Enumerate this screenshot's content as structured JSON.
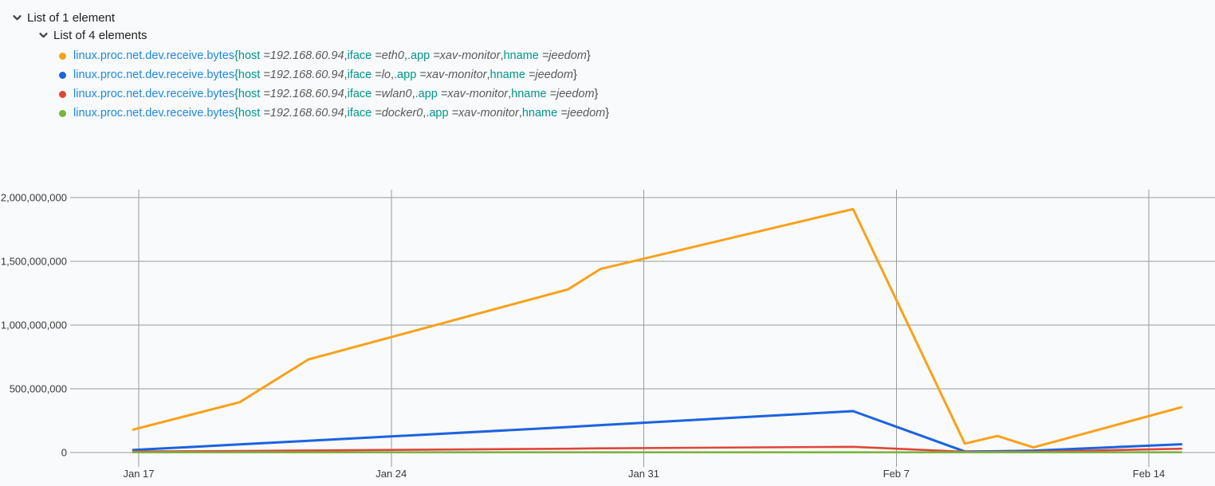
{
  "tree": {
    "root_label": "List of 1 element",
    "child_label": "List of 4 elements"
  },
  "colors": {
    "background": "#F8FAFB",
    "gridline": "#9B9B9B",
    "axis_text": "#3A3A3A",
    "metric_link": "#1E88E5",
    "tag_key": "#009688",
    "tag_value": "#5A5A5A",
    "tree_text": "#212121",
    "series_eth0": "#F9A11B",
    "series_lo": "#1B63E0",
    "series_wlan0": "#E0453C",
    "series_docker0": "#7CB342"
  },
  "legend": {
    "metric_name": "linux.proc.net.dev.receive.bytes",
    "series": [
      {
        "iface": "eth0",
        "color": "#F9A11B",
        "tags": [
          {
            "key": "host",
            "value": "192.168.60.94"
          },
          {
            "key": "iface",
            "value": "eth0"
          },
          {
            "key": ".app",
            "value": "xav-monitor"
          },
          {
            "key": "hname",
            "value": "jeedom"
          }
        ]
      },
      {
        "iface": "lo",
        "color": "#1B63E0",
        "tags": [
          {
            "key": "host",
            "value": "192.168.60.94"
          },
          {
            "key": "iface",
            "value": "lo"
          },
          {
            "key": ".app",
            "value": "xav-monitor"
          },
          {
            "key": "hname",
            "value": "jeedom"
          }
        ]
      },
      {
        "iface": "wlan0",
        "color": "#E0453C",
        "tags": [
          {
            "key": "host",
            "value": "192.168.60.94"
          },
          {
            "key": "iface",
            "value": "wlan0"
          },
          {
            "key": ".app",
            "value": "xav-monitor"
          },
          {
            "key": "hname",
            "value": "jeedom"
          }
        ]
      },
      {
        "iface": "docker0",
        "color": "#7CB342",
        "tags": [
          {
            "key": "host",
            "value": "192.168.60.94"
          },
          {
            "key": "iface",
            "value": "docker0"
          },
          {
            "key": ".app",
            "value": "xav-monitor"
          },
          {
            "key": "hname",
            "value": "jeedom"
          }
        ]
      }
    ]
  },
  "chart_data": {
    "type": "line",
    "metric": "linux.proc.net.dev.receive.bytes",
    "title": "",
    "xlabel": "",
    "ylabel": "",
    "grid": true,
    "legend_position": "top-left",
    "ylim": [
      0,
      2000000000
    ],
    "y_ticks": [
      {
        "value": 2000000000,
        "label": "2,000,000,000"
      },
      {
        "value": 1500000000,
        "label": "1,500,000,000"
      },
      {
        "value": 1000000000,
        "label": "1,000,000,000"
      },
      {
        "value": 500000000,
        "label": "500,000,000"
      },
      {
        "value": 0,
        "label": "0"
      }
    ],
    "x_ticks": [
      {
        "label": "Jan 17",
        "day": 0
      },
      {
        "label": "Jan 24",
        "day": 7
      },
      {
        "label": "Jan 31",
        "day": 14
      },
      {
        "label": "Feb 7",
        "day": 21
      },
      {
        "label": "Feb 14",
        "day": 28
      }
    ],
    "x_dates": [
      "Jan 17",
      "Jan 20",
      "Jan 22",
      "Jan 29",
      "Jan 30",
      "Feb 6",
      "Feb 9",
      "Feb 10",
      "Feb 11",
      "Feb 15"
    ],
    "x_days": [
      -0.15,
      2.8,
      4.7,
      11.9,
      12.8,
      19.8,
      22.9,
      23.8,
      24.8,
      28.9
    ],
    "series": [
      {
        "iface": "eth0",
        "name": "iface=eth0",
        "color": "#F9A11B",
        "values": [
          180000000,
          395000000,
          730000000,
          1280000000,
          1440000000,
          1910000000,
          70000000,
          130000000,
          40000000,
          355000000
        ]
      },
      {
        "iface": "lo",
        "name": "iface=lo",
        "color": "#1B63E0",
        "values": [
          20000000,
          64000000,
          92000000,
          200000000,
          215000000,
          325000000,
          8000000,
          10000000,
          15000000,
          65000000
        ]
      },
      {
        "iface": "wlan0",
        "name": "iface=wlan0",
        "color": "#E0453C",
        "values": [
          8000000,
          12000000,
          16000000,
          30000000,
          33000000,
          45000000,
          6000000,
          5000000,
          6000000,
          30000000
        ]
      },
      {
        "iface": "docker0",
        "name": "iface=docker0",
        "color": "#7CB342",
        "values": [
          2000000,
          2000000,
          2000000,
          2000000,
          2000000,
          2000000,
          2000000,
          2000000,
          2000000,
          2000000
        ]
      }
    ]
  }
}
